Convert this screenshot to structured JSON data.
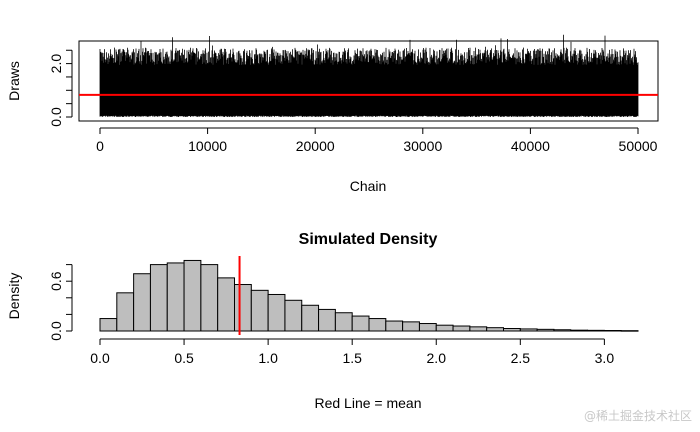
{
  "watermark": "@稀土掘金技术社区",
  "chart_data": [
    {
      "type": "line",
      "title": "",
      "xlabel": "Chain",
      "ylabel": "Draws",
      "xlim": [
        0,
        50000
      ],
      "ylim": [
        0,
        3.0
      ],
      "x_ticks": [
        0,
        10000,
        20000,
        30000,
        40000,
        50000
      ],
      "x_tick_labels": [
        "0",
        "10000",
        "20000",
        "30000",
        "40000",
        "50000"
      ],
      "y_ticks": [
        0.0,
        0.5,
        1.0,
        1.5,
        2.0,
        2.5
      ],
      "y_tick_labels": [
        "0.0",
        "",
        "",
        "",
        "2.0",
        ""
      ],
      "n_draws": 50000,
      "trace_band": {
        "min": 0.0,
        "typical_max": 2.6,
        "max": 3.2
      },
      "mean_line": {
        "value": 0.83,
        "color": "#ff0000"
      },
      "line_color": "#000000",
      "grid": false,
      "legend": "none"
    },
    {
      "type": "bar",
      "subtype": "histogram",
      "title": "Simulated Density",
      "xlabel": "Red Line = mean",
      "ylabel": "Density",
      "xlim": [
        0,
        3.2
      ],
      "ylim": [
        0,
        0.85
      ],
      "x_ticks": [
        0.0,
        0.5,
        1.0,
        1.5,
        2.0,
        2.5,
        3.0
      ],
      "x_tick_labels": [
        "0.0",
        "0.5",
        "1.0",
        "1.5",
        "2.0",
        "2.5",
        "3.0"
      ],
      "y_ticks": [
        0.0,
        0.2,
        0.4,
        0.6,
        0.8
      ],
      "y_tick_labels": [
        "0.0",
        "",
        "",
        "0.6",
        ""
      ],
      "bin_width": 0.1,
      "bin_start": 0.0,
      "values": [
        0.15,
        0.46,
        0.69,
        0.8,
        0.82,
        0.85,
        0.8,
        0.64,
        0.56,
        0.49,
        0.44,
        0.37,
        0.31,
        0.26,
        0.22,
        0.18,
        0.15,
        0.12,
        0.11,
        0.09,
        0.07,
        0.06,
        0.05,
        0.04,
        0.03,
        0.025,
        0.02,
        0.015,
        0.01,
        0.008,
        0.006,
        0.004
      ],
      "bar_fill": "#bebebe",
      "bar_stroke": "#000000",
      "mean_line": {
        "value": 0.83,
        "color": "#ff0000"
      },
      "grid": false,
      "legend": "none"
    }
  ]
}
